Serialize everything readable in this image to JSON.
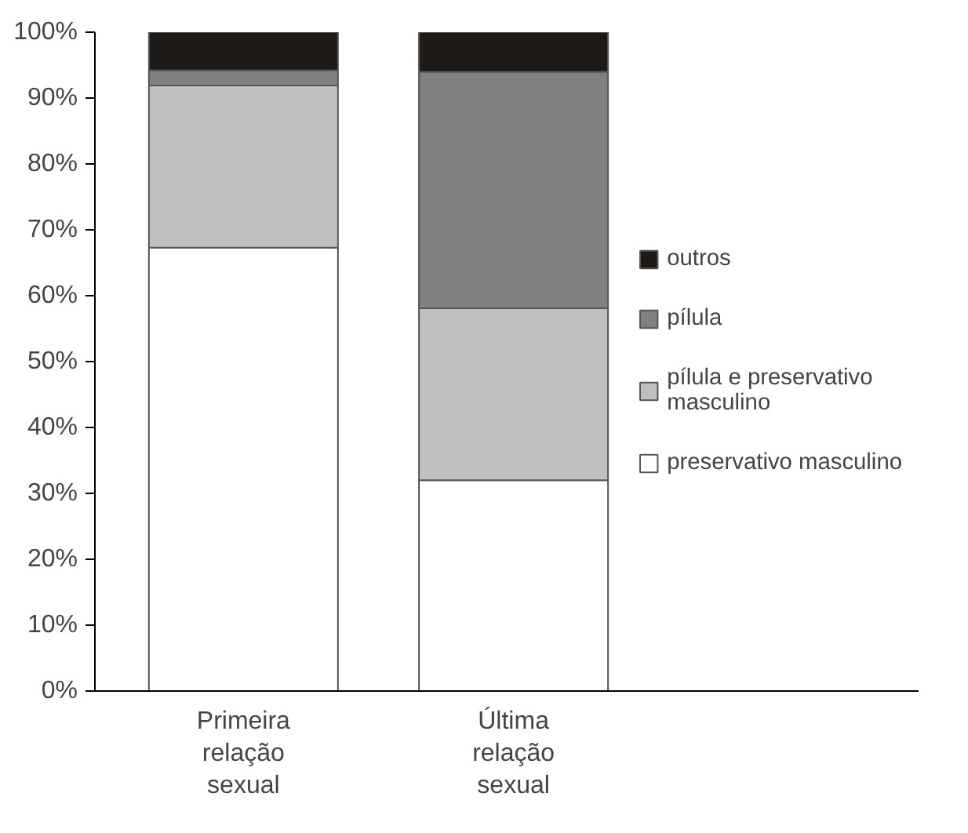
{
  "chart_data": {
    "type": "bar",
    "stacked": true,
    "categories": [
      "Primeira relação sexual",
      "Última relação sexual"
    ],
    "series": [
      {
        "name": "preservativo masculino",
        "color": "#ffffff",
        "values": [
          67.3,
          32.0
        ]
      },
      {
        "name": "pílula e preservativo masculino",
        "color": "#c0c0c0",
        "values": [
          24.6,
          26.1
        ]
      },
      {
        "name": "pílula",
        "color": "#808080",
        "values": [
          2.3,
          35.9
        ]
      },
      {
        "name": "outros",
        "color": "#1e1a18",
        "values": [
          5.8,
          6.0
        ]
      }
    ],
    "ylim": [
      0,
      100
    ],
    "yticks": [
      {
        "value": 0,
        "label": "0%"
      },
      {
        "value": 10,
        "label": "10%"
      },
      {
        "value": 20,
        "label": "20%"
      },
      {
        "value": 30,
        "label": "30%"
      },
      {
        "value": 40,
        "label": "40%"
      },
      {
        "value": 50,
        "label": "50%"
      },
      {
        "value": 60,
        "label": "60%"
      },
      {
        "value": 70,
        "label": "70%"
      },
      {
        "value": 80,
        "label": "80%"
      },
      {
        "value": 90,
        "label": "90%"
      },
      {
        "value": 100,
        "label": "100%"
      }
    ],
    "grid": false,
    "legend": "right"
  }
}
